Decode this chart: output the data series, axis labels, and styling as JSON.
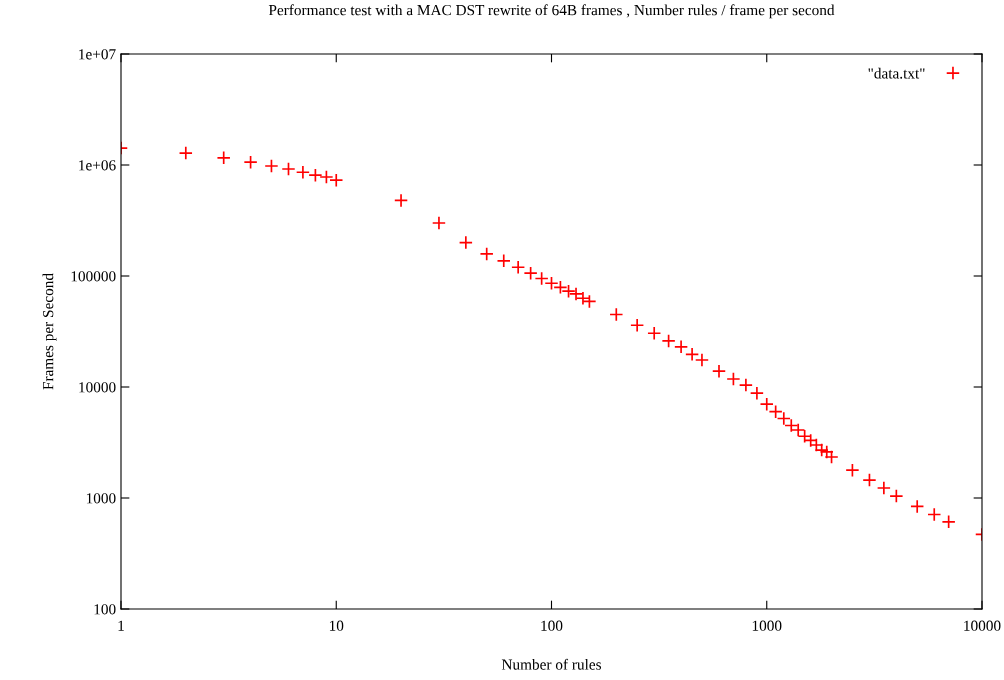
{
  "chart_data": {
    "type": "scatter",
    "title": "Performance test with a MAC DST rewrite of 64B frames , Number rules / frame per second",
    "xlabel": "Number of rules",
    "ylabel": "Frames per Second",
    "log": "xy",
    "xlim": [
      1,
      10000
    ],
    "ylim": [
      100,
      10000000
    ],
    "xticks": [
      1,
      10,
      100,
      1000,
      10000
    ],
    "yticks": [
      100,
      1000,
      10000,
      100000,
      {
        "value": 1000000,
        "label": "1e+06"
      },
      {
        "value": 10000000,
        "label": "1e+07"
      }
    ],
    "marker": "cross",
    "legend": "top right",
    "grid": false,
    "series": [
      {
        "name": "\"data.txt\"",
        "color": "#ff0000",
        "x": [
          1,
          2,
          3,
          4,
          5,
          6,
          7,
          8,
          9,
          10,
          20,
          30,
          40,
          50,
          60,
          70,
          80,
          90,
          100,
          110,
          120,
          130,
          140,
          150,
          200,
          250,
          300,
          350,
          400,
          450,
          500,
          600,
          700,
          800,
          900,
          1000,
          1100,
          1200,
          1300,
          1400,
          1500,
          1600,
          1700,
          1800,
          1900,
          2000,
          2500,
          3000,
          3500,
          4000,
          5000,
          6000,
          7000,
          10000
        ],
        "values": [
          1420000,
          1280000,
          1160000,
          1060000,
          980000,
          920000,
          860000,
          810000,
          780000,
          730000,
          480000,
          300000,
          200000,
          158000,
          137000,
          120000,
          106000,
          95000,
          86000,
          79000,
          73000,
          69000,
          63000,
          59000,
          45000,
          36000,
          30500,
          26000,
          23000,
          19700,
          17500,
          13900,
          11800,
          10400,
          8800,
          7000,
          6000,
          5200,
          4500,
          4100,
          3600,
          3300,
          3000,
          2700,
          2600,
          2340,
          1780,
          1450,
          1230,
          1040,
          840,
          710,
          610,
          470
        ]
      }
    ]
  }
}
